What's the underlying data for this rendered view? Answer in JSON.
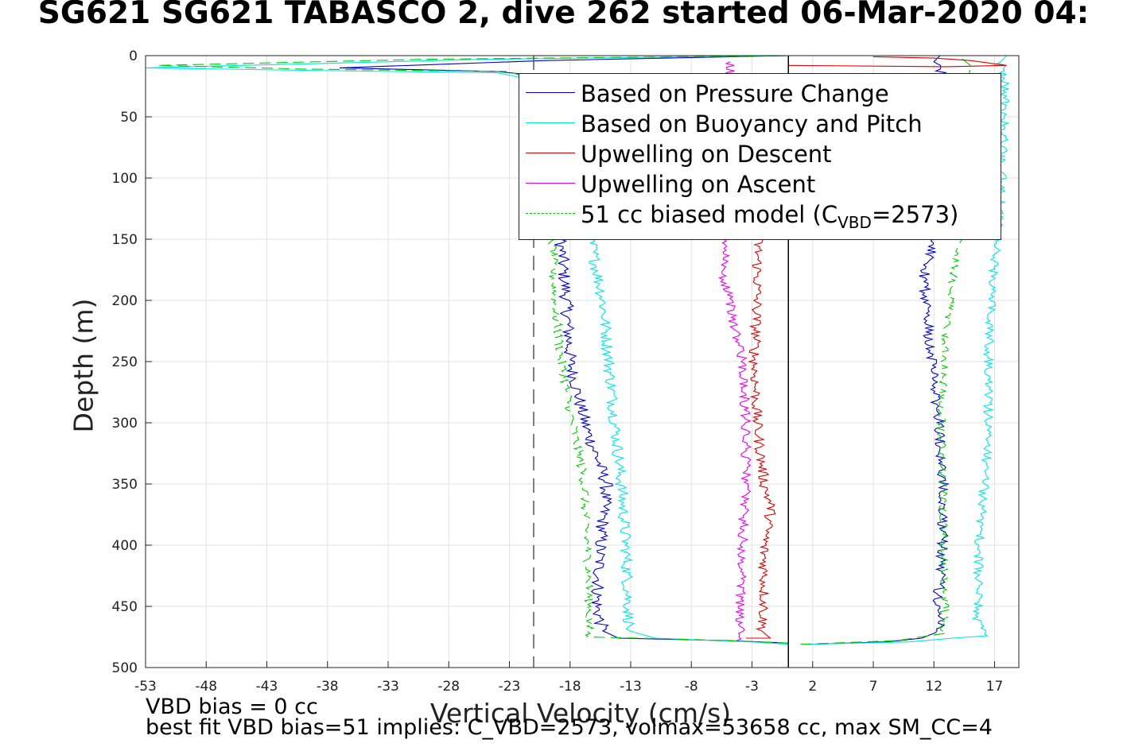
{
  "title": "SG621 SG621 TABASCO 2, dive 262 started 06-Mar-2020 04:",
  "notes": {
    "line1": "VBD bias = 0 cc",
    "line2": "best fit VBD bias=51 implies: C_VBD=2573, volmax=53658 cc, max SM_CC=4"
  },
  "chart_data": {
    "type": "line",
    "xlabel": "Vertical Velocity (cm/s)",
    "ylabel": "Depth (m)",
    "xlim": [
      -53,
      19
    ],
    "ylim": [
      0,
      500
    ],
    "y_reversed": true,
    "grid": true,
    "xticks": [
      -53,
      -48,
      -43,
      -38,
      -33,
      -28,
      -23,
      -18,
      -13,
      -8,
      -3,
      2,
      7,
      12,
      17
    ],
    "yticks": [
      0,
      50,
      100,
      150,
      200,
      250,
      300,
      350,
      400,
      450,
      500
    ],
    "reference_lines": [
      {
        "axis": "x",
        "value": 0,
        "style": "solid",
        "color": "#000000"
      },
      {
        "axis": "x",
        "value": -21,
        "style": "dashed",
        "color": "#555555"
      }
    ],
    "legend": {
      "placement": "top-right",
      "entries": [
        {
          "label": "Based on Pressure Change",
          "color": "#0000cc",
          "style": "solid"
        },
        {
          "label": "Based on Buoyancy and Pitch",
          "color": "#00e5e5",
          "style": "solid"
        },
        {
          "label": "Upwelling on Descent",
          "color": "#dd0000",
          "style": "solid"
        },
        {
          "label": "Upwelling on Ascent",
          "color": "#ee00ee",
          "style": "solid"
        },
        {
          "label_main": "51 cc biased model (C",
          "label_sub": "VBD",
          "label_end": "=2573)",
          "color": "#00cc00",
          "style": "dashed"
        }
      ]
    },
    "series": [
      {
        "key": "pressure_descent",
        "color": "#0000cc",
        "style": "solid",
        "jitter": 0.55,
        "points": [
          [
            0,
            0
          ],
          [
            -20,
            4
          ],
          [
            -37,
            10
          ],
          [
            -24,
            13
          ],
          [
            -20,
            17
          ],
          [
            -19,
            25
          ],
          [
            -18.8,
            150
          ],
          [
            -18.3,
            200
          ],
          [
            -18,
            250
          ],
          [
            -16.8,
            300
          ],
          [
            -15,
            350
          ],
          [
            -15.5,
            400
          ],
          [
            -15.8,
            450
          ],
          [
            -15.3,
            470
          ],
          [
            -14,
            476
          ],
          [
            -5,
            478
          ],
          [
            0,
            480
          ]
        ]
      },
      {
        "key": "pressure_ascent",
        "color": "#0000cc",
        "style": "solid",
        "jitter": 0.45,
        "points": [
          [
            2,
            481
          ],
          [
            8,
            479
          ],
          [
            11,
            476
          ],
          [
            12.5,
            470
          ],
          [
            12.3,
            450
          ],
          [
            12.7,
            400
          ],
          [
            12.8,
            350
          ],
          [
            12.4,
            300
          ],
          [
            11.8,
            250
          ],
          [
            11.3,
            200
          ],
          [
            11.2,
            180
          ],
          [
            12.2,
            150
          ],
          [
            14,
            60
          ],
          [
            13,
            20
          ],
          [
            12,
            5
          ],
          [
            12.5,
            0
          ]
        ]
      },
      {
        "key": "buoyancy_descent",
        "color": "#00e5e5",
        "style": "solid",
        "jitter": 0.5,
        "points": [
          [
            0,
            0
          ],
          [
            -25,
            3
          ],
          [
            -53,
            10
          ],
          [
            -40,
            12
          ],
          [
            -24,
            14
          ],
          [
            -20,
            22
          ],
          [
            -16.3,
            150
          ],
          [
            -15.3,
            200
          ],
          [
            -14.8,
            250
          ],
          [
            -14.3,
            300
          ],
          [
            -13.8,
            350
          ],
          [
            -13.4,
            400
          ],
          [
            -13.2,
            450
          ],
          [
            -13.1,
            470
          ],
          [
            -11,
            476
          ],
          [
            -3,
            479
          ],
          [
            0,
            481
          ]
        ]
      },
      {
        "key": "buoyancy_ascent",
        "color": "#00e5e5",
        "style": "solid",
        "jitter": 0.4,
        "points": [
          [
            1.5,
            481
          ],
          [
            10,
            479
          ],
          [
            16,
            474
          ],
          [
            15.6,
            460
          ],
          [
            15.7,
            400
          ],
          [
            16.2,
            350
          ],
          [
            16.5,
            300
          ],
          [
            16.5,
            250
          ],
          [
            16.7,
            200
          ],
          [
            17.2,
            150
          ],
          [
            17.6,
            100
          ],
          [
            17.9,
            30
          ],
          [
            17.5,
            5
          ],
          [
            18,
            0
          ]
        ]
      },
      {
        "key": "model_descent",
        "color": "#00cc00",
        "style": "dashed",
        "jitter": 0.4,
        "points": [
          [
            0,
            0
          ],
          [
            -30,
            3
          ],
          [
            -52,
            8
          ],
          [
            -40,
            11
          ],
          [
            -23,
            13
          ],
          [
            -21,
            20
          ],
          [
            -19.5,
            150
          ],
          [
            -19.3,
            200
          ],
          [
            -18.7,
            250
          ],
          [
            -17.8,
            300
          ],
          [
            -16.8,
            350
          ],
          [
            -16.6,
            400
          ],
          [
            -16.4,
            450
          ],
          [
            -16.5,
            475
          ],
          [
            -8,
            477
          ],
          [
            0,
            480
          ]
        ]
      },
      {
        "key": "model_ascent",
        "color": "#00cc00",
        "style": "dashed",
        "jitter": 0.35,
        "points": [
          [
            1,
            481
          ],
          [
            9,
            478
          ],
          [
            12.8,
            472
          ],
          [
            12.9,
            450
          ],
          [
            12.8,
            400
          ],
          [
            12.7,
            350
          ],
          [
            12.6,
            300
          ],
          [
            12.8,
            250
          ],
          [
            13.3,
            200
          ],
          [
            13.8,
            160
          ],
          [
            14.3,
            150
          ],
          [
            14.5,
            100
          ],
          [
            14.8,
            30
          ],
          [
            15,
            8
          ],
          [
            14,
            0
          ]
        ]
      },
      {
        "key": "upwelling_descent",
        "color": "#dd0000",
        "style": "solid",
        "jitter": 0.45,
        "points": [
          [
            -2.5,
            150
          ],
          [
            -2.6,
            200
          ],
          [
            -2.8,
            250
          ],
          [
            -2.6,
            300
          ],
          [
            -2,
            350
          ],
          [
            -1.4,
            370
          ],
          [
            -2,
            400
          ],
          [
            -2,
            450
          ],
          [
            -2.2,
            470
          ],
          [
            -1.5,
            476
          ],
          [
            -3.5,
            476
          ]
        ]
      },
      {
        "key": "upwelling_top",
        "color": "#dd0000",
        "style": "solid",
        "jitter": 0.0,
        "points": [
          [
            7,
            1
          ],
          [
            12,
            2
          ],
          [
            15,
            4
          ],
          [
            18,
            8
          ],
          [
            13,
            9
          ],
          [
            0,
            8
          ]
        ]
      },
      {
        "key": "upwelling_ascent",
        "color": "#ee00ee",
        "style": "solid",
        "jitter": 0.4,
        "points": [
          [
            -4,
            478
          ],
          [
            -4,
            450
          ],
          [
            -3.8,
            400
          ],
          [
            -3.5,
            350
          ],
          [
            -3.5,
            300
          ],
          [
            -3.8,
            250
          ],
          [
            -4.5,
            220
          ],
          [
            -4.8,
            200
          ],
          [
            -5.5,
            180
          ],
          [
            -5,
            150
          ],
          [
            -4.8,
            100
          ],
          [
            -4.8,
            5
          ]
        ]
      }
    ]
  }
}
